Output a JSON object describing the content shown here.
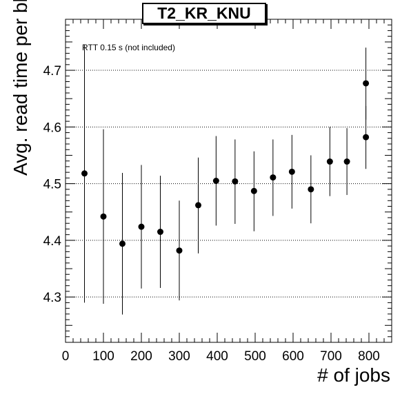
{
  "chart_data": {
    "type": "scatter",
    "title": "T2_KR_KNU",
    "xlabel": "# of jobs",
    "ylabel": "Avg. read time per block [s]",
    "annotation": "RTT 0.15 s (not included)",
    "xlim": [
      0,
      860
    ],
    "ylim": [
      4.22,
      4.79
    ],
    "xticks": [
      0,
      100,
      200,
      300,
      400,
      500,
      600,
      700,
      800
    ],
    "yticks": [
      4.3,
      4.4,
      4.5,
      4.6,
      4.7
    ],
    "ytick_labels": [
      "4.3",
      "4.4",
      "4.5",
      "4.6",
      "4.7"
    ],
    "grid": "horizontal dotted",
    "points": [
      {
        "x": 50,
        "y": 4.518,
        "ylow": 4.29,
        "yhigh": 4.745
      },
      {
        "x": 100,
        "y": 4.442,
        "ylow": 4.288,
        "yhigh": 4.596
      },
      {
        "x": 150,
        "y": 4.394,
        "ylow": 4.269,
        "yhigh": 4.519
      },
      {
        "x": 200,
        "y": 4.424,
        "ylow": 4.315,
        "yhigh": 4.533
      },
      {
        "x": 250,
        "y": 4.415,
        "ylow": 4.316,
        "yhigh": 4.514
      },
      {
        "x": 300,
        "y": 4.382,
        "ylow": 4.294,
        "yhigh": 4.47
      },
      {
        "x": 350,
        "y": 4.462,
        "ylow": 4.377,
        "yhigh": 4.546
      },
      {
        "x": 397,
        "y": 4.505,
        "ylow": 4.426,
        "yhigh": 4.584
      },
      {
        "x": 447,
        "y": 4.504,
        "ylow": 4.429,
        "yhigh": 4.578
      },
      {
        "x": 497,
        "y": 4.487,
        "ylow": 4.416,
        "yhigh": 4.557
      },
      {
        "x": 547,
        "y": 4.511,
        "ylow": 4.443,
        "yhigh": 4.578
      },
      {
        "x": 597,
        "y": 4.521,
        "ylow": 4.456,
        "yhigh": 4.586
      },
      {
        "x": 647,
        "y": 4.49,
        "ylow": 4.43,
        "yhigh": 4.55
      },
      {
        "x": 697,
        "y": 4.539,
        "ylow": 4.478,
        "yhigh": 4.6
      },
      {
        "x": 742,
        "y": 4.539,
        "ylow": 4.48,
        "yhigh": 4.598
      },
      {
        "x": 792,
        "y": 4.677,
        "ylow": 4.613,
        "yhigh": 4.74
      },
      {
        "x": 792,
        "y": 4.582,
        "ylow": 4.526,
        "yhigh": 4.637
      }
    ]
  }
}
